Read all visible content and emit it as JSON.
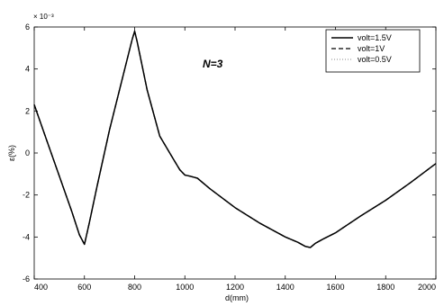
{
  "chart_data": {
    "type": "line",
    "xlabel": "d(mm)",
    "ylabel": "ε(%)",
    "xlim": [
      400,
      2000
    ],
    "ylim": [
      -6,
      6
    ],
    "y_exponent": "× 10⁻³",
    "xticks": [
      "400",
      "600",
      "800",
      "1000",
      "1200",
      "1400",
      "1600",
      "1800",
      "2000"
    ],
    "yticks": [
      "-6",
      "-4",
      "-2",
      "0",
      "2",
      "4",
      "6"
    ],
    "legend_placement": "top-right",
    "annotation": "N=3",
    "grid": false,
    "series": [
      {
        "name": "volt=1.5V",
        "style": "solid",
        "color": "#000000",
        "x": [
          400,
          450,
          500,
          550,
          580,
          600,
          620,
          650,
          700,
          750,
          790,
          800,
          810,
          850,
          900,
          950,
          980,
          1000,
          1020,
          1050,
          1100,
          1200,
          1300,
          1400,
          1450,
          1480,
          1500,
          1520,
          1550,
          1600,
          1700,
          1800,
          1900,
          2000
        ],
        "y": [
          2.3,
          0.6,
          -1.1,
          -2.8,
          -3.9,
          -4.35,
          -3.3,
          -1.6,
          1.1,
          3.5,
          5.4,
          5.8,
          5.3,
          3.0,
          0.8,
          -0.2,
          -0.8,
          -1.05,
          -1.1,
          -1.2,
          -1.7,
          -2.6,
          -3.35,
          -4.0,
          -4.25,
          -4.45,
          -4.5,
          -4.3,
          -4.1,
          -3.8,
          -3.0,
          -2.25,
          -1.4,
          -0.5
        ]
      },
      {
        "name": "volt=1V",
        "style": "dashed",
        "color": "#000000",
        "x": [
          400,
          450,
          500,
          550,
          580,
          600,
          620,
          650,
          700,
          750,
          790,
          800,
          810,
          850,
          900,
          950,
          980,
          1000,
          1020,
          1050,
          1100,
          1200,
          1300,
          1400,
          1450,
          1480,
          1500,
          1520,
          1550,
          1600,
          1700,
          1800,
          1900,
          2000
        ],
        "y": [
          2.3,
          0.6,
          -1.1,
          -2.8,
          -3.9,
          -4.35,
          -3.3,
          -1.6,
          1.1,
          3.5,
          5.4,
          5.8,
          5.3,
          3.0,
          0.8,
          -0.2,
          -0.8,
          -1.05,
          -1.1,
          -1.2,
          -1.7,
          -2.6,
          -3.35,
          -4.0,
          -4.25,
          -4.45,
          -4.5,
          -4.3,
          -4.1,
          -3.8,
          -3.0,
          -2.25,
          -1.4,
          -0.5
        ]
      },
      {
        "name": "volt=0.5V",
        "style": "dotted",
        "color": "#888888",
        "x": [
          400,
          450,
          500,
          550,
          580,
          600,
          620,
          650,
          700,
          750,
          790,
          800,
          810,
          850,
          900,
          950,
          980,
          1000,
          1020,
          1050,
          1100,
          1200,
          1300,
          1400,
          1450,
          1480,
          1500,
          1520,
          1550,
          1600,
          1700,
          1800,
          1900,
          2000
        ],
        "y": [
          2.3,
          0.6,
          -1.1,
          -2.8,
          -3.9,
          -4.35,
          -3.3,
          -1.6,
          1.1,
          3.5,
          5.4,
          5.8,
          5.3,
          3.0,
          0.8,
          -0.2,
          -0.8,
          -1.05,
          -1.1,
          -1.2,
          -1.7,
          -2.6,
          -3.35,
          -4.0,
          -4.25,
          -4.45,
          -4.5,
          -4.3,
          -4.1,
          -3.8,
          -3.0,
          -2.25,
          -1.4,
          -0.5
        ]
      }
    ]
  }
}
